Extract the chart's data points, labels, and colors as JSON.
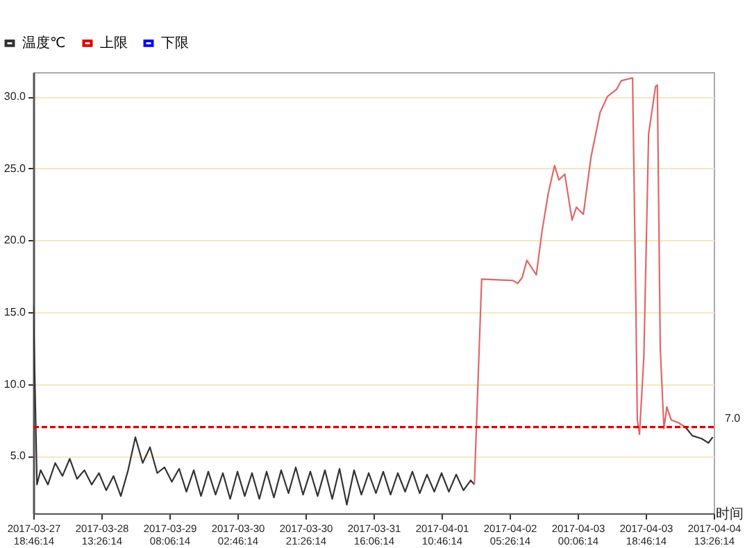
{
  "chart_data": {
    "type": "line",
    "xlabel": "时间",
    "legend": "top left",
    "grid": "y",
    "line_style": "solid",
    "xlim": [
      "2017-03-27T18:46",
      "2017-04-04T13:26"
    ],
    "xticks": [
      {
        "value": "2017-03-27T18:46",
        "label": "2017-03-27 18:46:14"
      },
      {
        "value": "2017-03-28T13:26",
        "label": "2017-03-28 13:26:14"
      },
      {
        "value": "2017-03-29T08:06",
        "label": "2017-03-29 08:06:14"
      },
      {
        "value": "2017-03-30T02:46",
        "label": "2017-03-30 02:46:14"
      },
      {
        "value": "2017-03-30T21:26",
        "label": "2017-03-30 21:26:14"
      },
      {
        "value": "2017-03-31T16:06",
        "label": "2017-03-31 16:06:14"
      },
      {
        "value": "2017-04-01T10:46",
        "label": "2017-04-01 10:46:14"
      },
      {
        "value": "2017-04-02T05:26",
        "label": "2017-04-02 05:26:14"
      },
      {
        "value": "2017-04-03T00:06",
        "label": "2017-04-03 00:06:14"
      },
      {
        "value": "2017-04-03T18:46",
        "label": "2017-04-03 18:46:14"
      },
      {
        "value": "2017-04-04T13:26",
        "label": "2017-04-04 13:26:14"
      }
    ],
    "ylim": [
      1.0,
      31.7
    ],
    "yticks": [
      {
        "value": 5,
        "label": "5.0"
      },
      {
        "value": 10,
        "label": "10.0"
      },
      {
        "value": 15,
        "label": "15.0"
      },
      {
        "value": 20,
        "label": "20.0"
      },
      {
        "value": 25,
        "label": "25.0"
      },
      {
        "value": 30,
        "label": "30.0"
      }
    ],
    "annotations": [
      {
        "text": "7.0",
        "x": "2017-04-04T13:26",
        "y": 7
      }
    ],
    "series": [
      {
        "name": "温度℃",
        "color": "#333333",
        "x": [
          "2017-03-27T18:46",
          "2017-03-27T19:46",
          "2017-03-27T20:46",
          "2017-03-27T22:46",
          "2017-03-28T00:46",
          "2017-03-28T02:46",
          "2017-03-28T04:46",
          "2017-03-28T06:46",
          "2017-03-28T08:46",
          "2017-03-28T10:46",
          "2017-03-28T12:46",
          "2017-03-28T14:46",
          "2017-03-28T16:46",
          "2017-03-28T18:46",
          "2017-03-28T20:46",
          "2017-03-28T22:46",
          "2017-03-29T00:46",
          "2017-03-29T02:46",
          "2017-03-29T04:46",
          "2017-03-29T06:46",
          "2017-03-29T08:46",
          "2017-03-29T10:46",
          "2017-03-29T12:46",
          "2017-03-29T14:46",
          "2017-03-29T16:46",
          "2017-03-29T18:46",
          "2017-03-29T20:46",
          "2017-03-29T22:46",
          "2017-03-30T00:46",
          "2017-03-30T02:46",
          "2017-03-30T04:46",
          "2017-03-30T06:46",
          "2017-03-30T08:46",
          "2017-03-30T10:46",
          "2017-03-30T12:46",
          "2017-03-30T14:46",
          "2017-03-30T16:46",
          "2017-03-30T18:46",
          "2017-03-30T20:46",
          "2017-03-30T22:46",
          "2017-03-31T00:46",
          "2017-03-31T02:46",
          "2017-03-31T04:46",
          "2017-03-31T06:46",
          "2017-03-31T08:46",
          "2017-03-31T10:46",
          "2017-03-31T12:46",
          "2017-03-31T14:46",
          "2017-03-31T16:46",
          "2017-03-31T18:46",
          "2017-03-31T20:46",
          "2017-03-31T22:46",
          "2017-04-01T00:46",
          "2017-04-01T02:46",
          "2017-04-01T04:46",
          "2017-04-01T06:46",
          "2017-04-01T08:46",
          "2017-04-01T10:46",
          "2017-04-01T12:46",
          "2017-04-01T14:46",
          "2017-04-01T16:46",
          "2017-04-01T18:46",
          "2017-04-01T19:46",
          "2017-04-02T12:00",
          "2017-04-04T05:40",
          "2017-04-04T07:34",
          "2017-04-04T10:04",
          "2017-04-04T11:58",
          "2017-04-04T13:10"
        ],
        "values": [
          15.5,
          3.0,
          4.0,
          3.0,
          4.5,
          3.6,
          4.8,
          3.4,
          4.0,
          3.0,
          3.8,
          2.6,
          3.6,
          2.2,
          4.0,
          6.3,
          4.5,
          5.6,
          3.8,
          4.2,
          3.2,
          4.1,
          2.5,
          4.0,
          2.2,
          3.9,
          2.3,
          3.8,
          2.0,
          3.9,
          2.2,
          3.8,
          2.0,
          3.9,
          2.1,
          4.0,
          2.4,
          4.2,
          2.3,
          3.9,
          2.2,
          4.0,
          2.0,
          4.1,
          1.6,
          4.0,
          2.3,
          3.8,
          2.4,
          3.9,
          2.3,
          3.8,
          2.5,
          3.9,
          2.4,
          3.7,
          2.5,
          3.8,
          2.5,
          3.7,
          2.6,
          3.3,
          3.0,
          null,
          7.0,
          6.4,
          6.2,
          5.9,
          6.3
        ]
      },
      {
        "color": "#e06666",
        "x": [
          "2017-04-01T19:46",
          "2017-04-01T21:46",
          "2017-04-02T06:22",
          "2017-04-02T07:40",
          "2017-04-02T08:52",
          "2017-04-02T10:10",
          "2017-04-02T12:46",
          "2017-04-02T14:22",
          "2017-04-02T16:04",
          "2017-04-02T17:46",
          "2017-04-02T18:58",
          "2017-04-02T20:34",
          "2017-04-02T22:34",
          "2017-04-02T23:46",
          "2017-04-03T01:40",
          "2017-04-03T03:46",
          "2017-04-03T06:16",
          "2017-04-03T08:16",
          "2017-04-03T10:46",
          "2017-04-03T12:04",
          "2017-04-03T15:10",
          "2017-04-03T16:04",
          "2017-04-03T16:28",
          "2017-04-03T17:04",
          "2017-04-03T18:16",
          "2017-04-03T19:34",
          "2017-04-03T21:28",
          "2017-04-03T21:58",
          "2017-04-03T22:46",
          "2017-04-03T23:46",
          "2017-04-04T00:34",
          "2017-04-04T01:46",
          "2017-04-04T03:46",
          "2017-04-04T05:40"
        ],
        "values": [
          3.0,
          17.3,
          17.2,
          17.0,
          17.4,
          18.6,
          17.6,
          20.7,
          23.3,
          25.2,
          24.2,
          24.6,
          21.4,
          22.3,
          21.8,
          25.8,
          28.9,
          30.0,
          30.5,
          31.1,
          31.3,
          15.7,
          7.5,
          6.5,
          11.9,
          27.4,
          30.7,
          30.8,
          12.5,
          6.9,
          8.4,
          7.5,
          7.3,
          7.0
        ]
      },
      {
        "name": "上限",
        "color": "#e00000",
        "line_style": "dashed",
        "x": [
          "2017-03-27T18:46",
          "2017-04-04T13:26"
        ],
        "values": [
          7,
          7
        ]
      },
      {
        "name": "下限",
        "color": "#0000ff"
      }
    ]
  }
}
